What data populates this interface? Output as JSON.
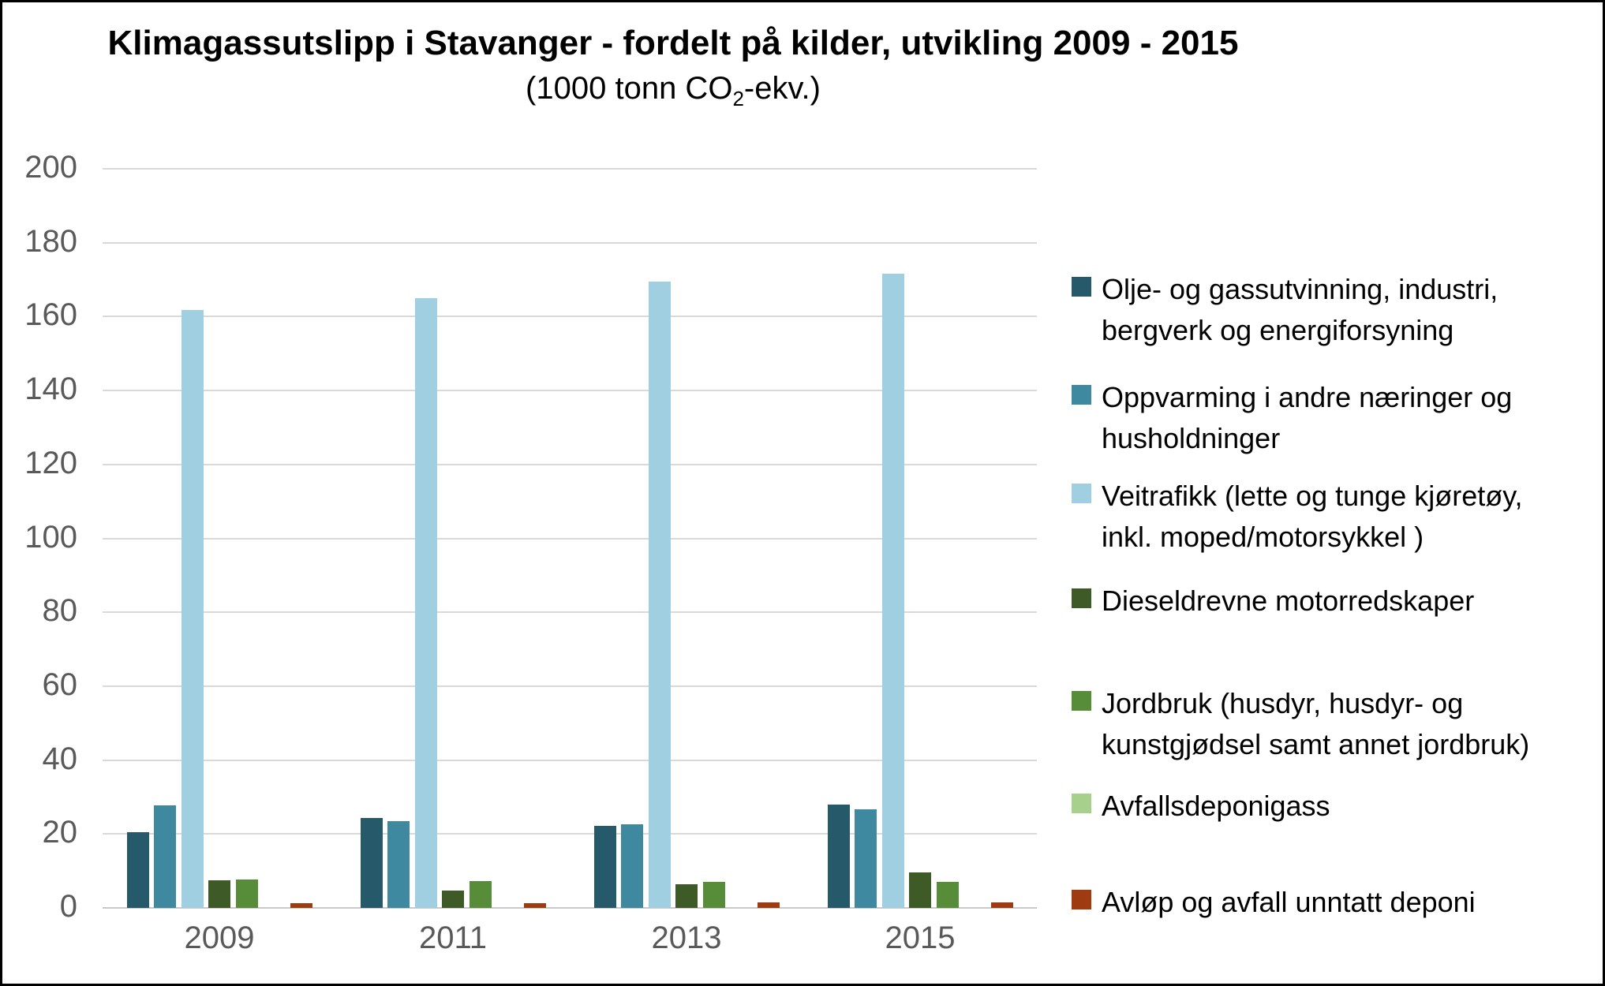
{
  "title": "Klimagassutslipp i Stavanger - fordelt på kilder, utvikling 2009 - 2015",
  "subtitle": {
    "prefix": "(1000 tonn CO",
    "subscript": "2",
    "suffix": "-ekv.)"
  },
  "chart_data": {
    "type": "bar",
    "title": "Klimagassutslipp i Stavanger - fordelt på kilder, utvikling 2009 - 2015",
    "subtitle": "(1000 tonn CO2-ekv.)",
    "unit": "1000 tonn CO2-ekv.",
    "categories": [
      "2009",
      "2011",
      "2013",
      "2015"
    ],
    "series": [
      {
        "name": "Olje- og gassutvinning, industri, bergverk og energiforsyning",
        "color": "#26596A",
        "values": [
          20.4,
          24.4,
          22.3,
          27.9
        ]
      },
      {
        "name": "Oppvarming i andre næringer og husholdninger",
        "color": "#3E89A0",
        "values": [
          27.7,
          23.4,
          22.6,
          26.6
        ]
      },
      {
        "name": "Veitrafikk (lette og tunge kjøretøy, inkl. moped/motorsykkel )",
        "color": "#9FCFE0",
        "values": [
          161.8,
          165.0,
          169.5,
          171.7
        ]
      },
      {
        "name": "Dieseldrevne motorredskaper",
        "color": "#3E5A26",
        "values": [
          7.4,
          4.8,
          6.4,
          9.7
        ]
      },
      {
        "name": "Jordbruk (husdyr, husdyr- og kunstgjødsel samt annet jordbruk)",
        "color": "#578C38",
        "values": [
          7.7,
          7.3,
          7.1,
          7.0
        ]
      },
      {
        "name": "Avfallsdeponigass",
        "color": "#A8D08D",
        "values": [
          0,
          0,
          0,
          0
        ]
      },
      {
        "name": "Avløp og avfall unntatt deponi",
        "color": "#9E3B10",
        "values": [
          1.2,
          1.3,
          1.4,
          1.5
        ]
      }
    ],
    "ylim": [
      0,
      200
    ],
    "ytick_interval": 20,
    "yticks": [
      0,
      20,
      40,
      60,
      80,
      100,
      120,
      140,
      160,
      180,
      200
    ],
    "grid": true,
    "legend_position": "right",
    "colors": {
      "gridline": "#d9d9d9",
      "axis_text": "#595959",
      "title_text": "#000000",
      "background": "#ffffff",
      "border": "#000000"
    }
  }
}
